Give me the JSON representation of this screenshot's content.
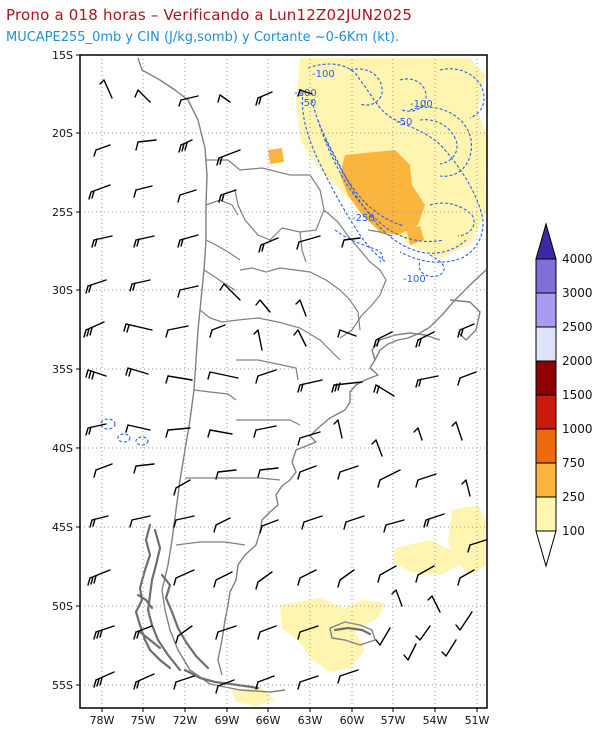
{
  "header": {
    "title": "Prono a 018 horas – Verificando a Lun12Z02JUN2025",
    "subtitle": "MUCAPE255_0mb y CIN (J/kg,somb) y Cortante ~0-6Km (kt)."
  },
  "map": {
    "lat_labels": [
      "15S",
      "20S",
      "25S",
      "30S",
      "35S",
      "40S",
      "45S",
      "50S",
      "55S"
    ],
    "lon_labels": [
      "78W",
      "75W",
      "72W",
      "69W",
      "66W",
      "63W",
      "60W",
      "57W",
      "54W",
      "51W"
    ],
    "contour_labels": [
      "-100",
      "-50",
      "-100",
      "-50",
      "-250",
      "-100",
      "-100"
    ]
  },
  "colorbar": {
    "labels": [
      "4000",
      "3000",
      "2500",
      "2000",
      "1500",
      "1000",
      "750",
      "250",
      "100"
    ],
    "colors": [
      "#7f6fd8",
      "#a99bf0",
      "#dfe3f7",
      "#8b0000",
      "#c81b0c",
      "#ec6a10",
      "#f9b53d",
      "#fff7b0"
    ],
    "top_arrow_color": "#3a2aa8",
    "bottom_arrow_color": "#ffffff"
  },
  "colors": {
    "cape_light": "#fff5b0",
    "cape_medium": "#f9b53d",
    "cin_contour": "#2d5ee8",
    "coast": "#808080",
    "barb": "#000000"
  }
}
